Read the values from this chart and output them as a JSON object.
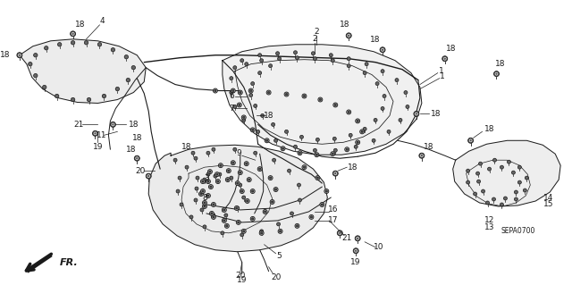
{
  "background_color": "#ffffff",
  "line_color": "#1a1a1a",
  "fig_width": 6.4,
  "fig_height": 3.19,
  "dpi": 100,
  "diagram_code": "SEPA0700",
  "font_size_label": 6.5,
  "font_size_code": 5.5,
  "gray_fill": "#e8e8e8",
  "mid_gray": "#d0d0d0",
  "body_bg": "#f0f0f0"
}
